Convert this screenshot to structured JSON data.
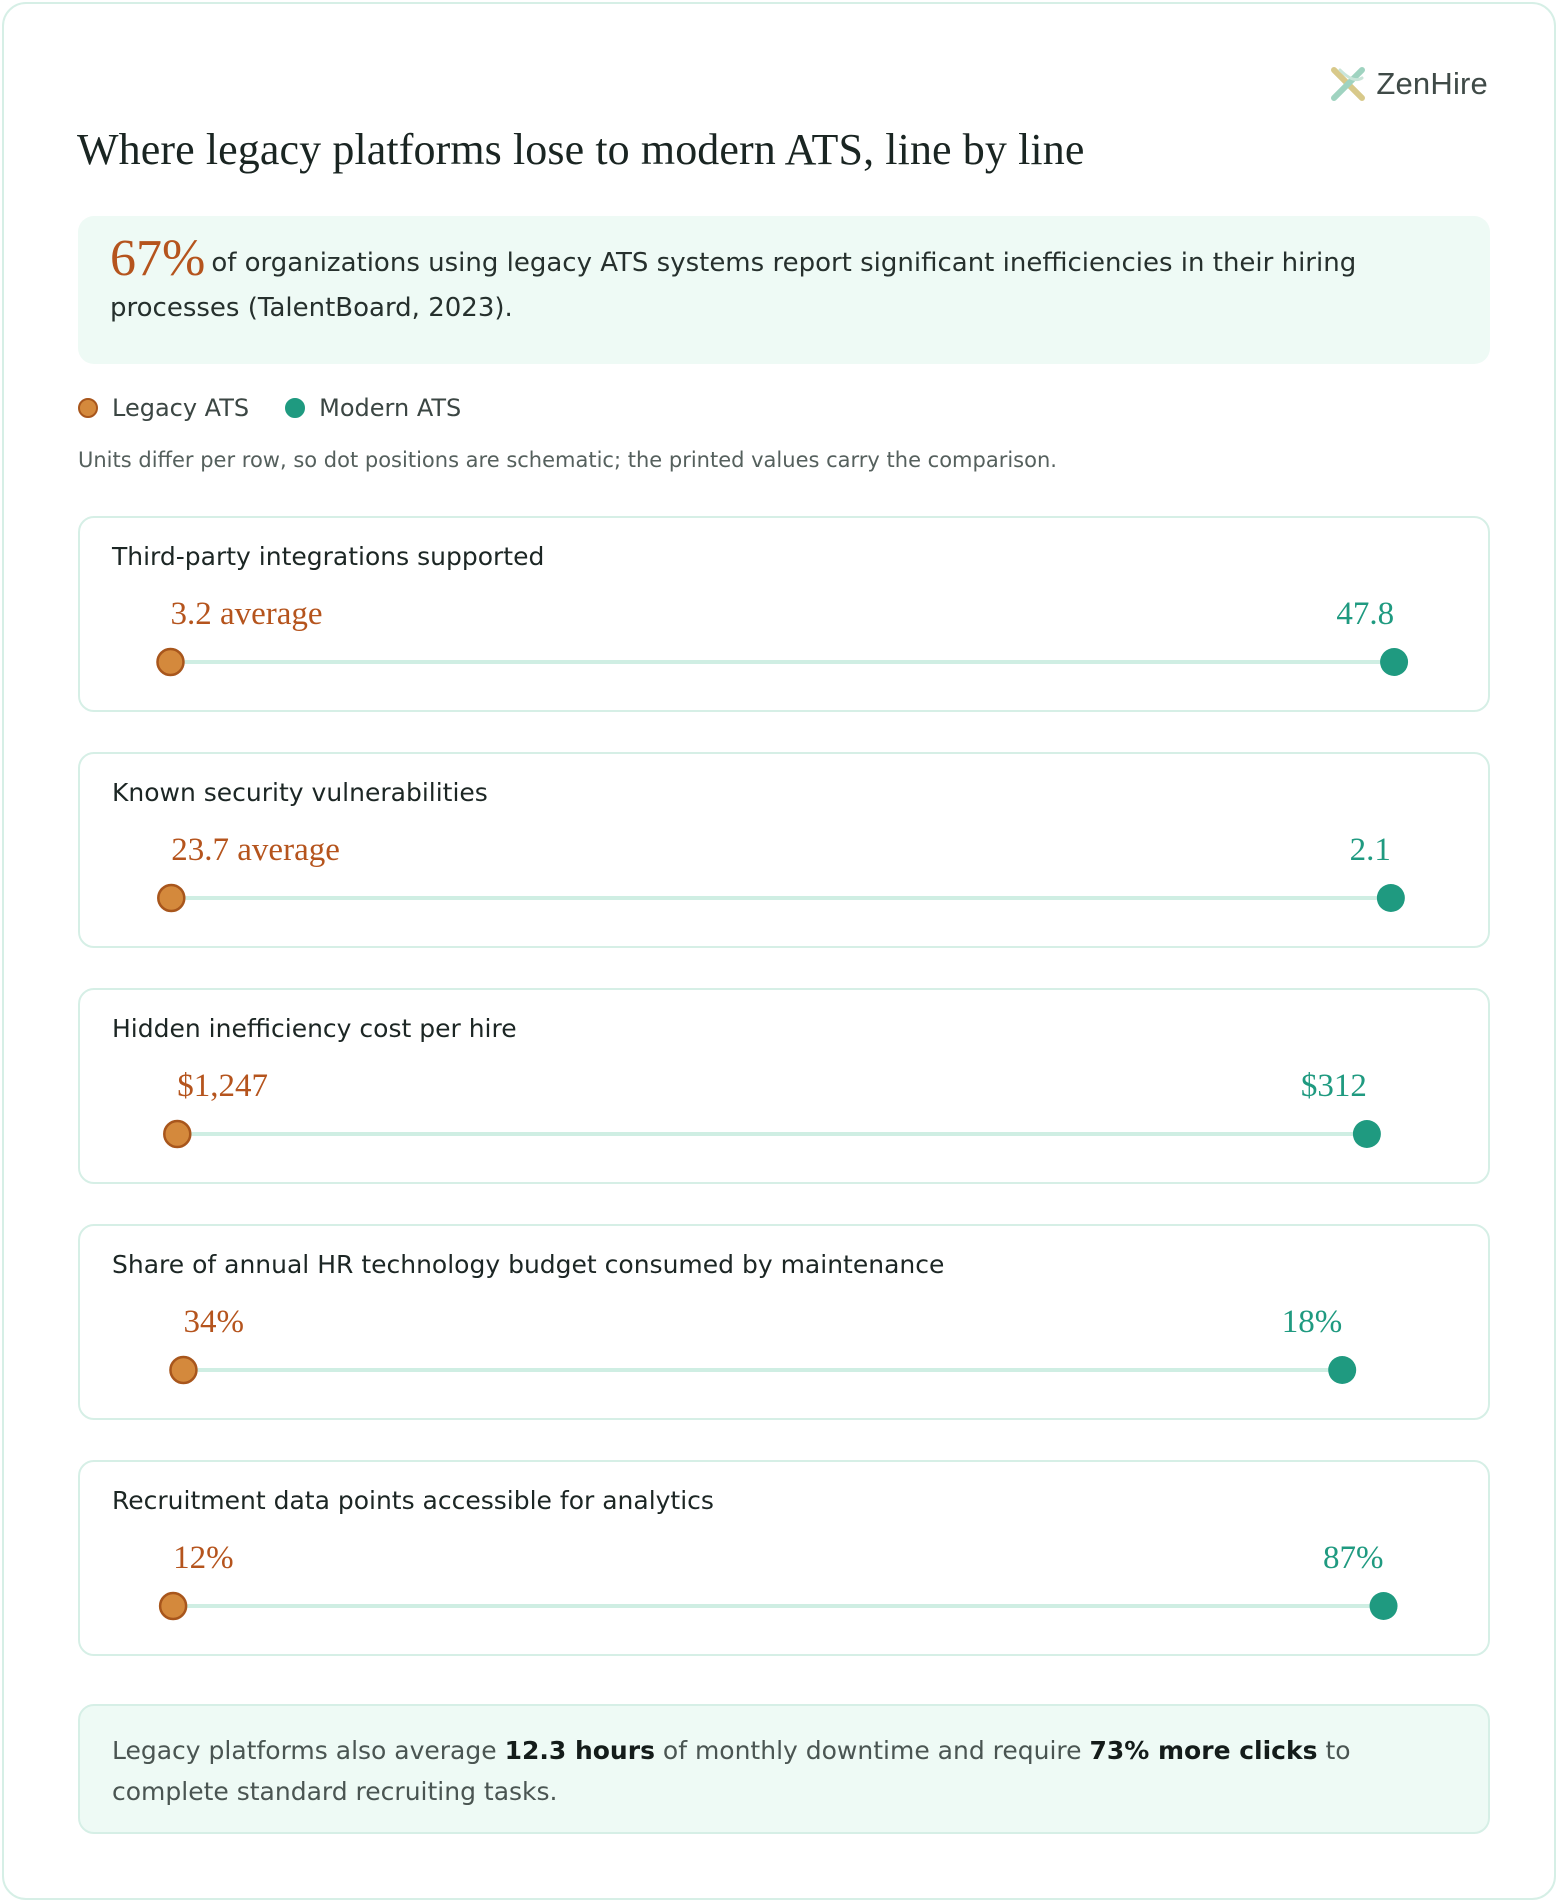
{
  "brand": {
    "name": "ZenHire"
  },
  "title": "Where legacy platforms lose to modern ATS, line by line",
  "highlight": {
    "value": "67%",
    "text": "of organizations using legacy ATS systems report significant inefficiencies in their hiring processes (TalentBoard, 2023)."
  },
  "legend": {
    "legacy": "Legacy ATS",
    "modern": "Modern ATS"
  },
  "note": "Units differ per row, so dot positions are schematic; the printed values carry the comparison.",
  "colors": {
    "legacy": "#d4893c",
    "legacy_text": "#b5541d",
    "modern": "#1f9a80",
    "track": "#cfeee3"
  },
  "chart_data": {
    "type": "dumbbell",
    "series": [
      {
        "name": "Legacy ATS"
      },
      {
        "name": "Modern ATS"
      }
    ],
    "rows": [
      {
        "label": "Third-party integrations supported",
        "legacy": 3.2,
        "modern": 47.8,
        "legacy_label": "3.2 average",
        "modern_label": "47.8"
      },
      {
        "label": "Known security vulnerabilities",
        "legacy": 23.7,
        "modern": 2.1,
        "legacy_label": "23.7 average",
        "modern_label": "2.1"
      },
      {
        "label": "Hidden inefficiency cost per hire",
        "legacy": 1247,
        "modern": 312,
        "legacy_label": "$1,247",
        "modern_label": "$312"
      },
      {
        "label": "Share of annual HR technology budget consumed by maintenance",
        "legacy": 34,
        "modern": 18,
        "legacy_label": "34%",
        "modern_label": "18%"
      },
      {
        "label": "Recruitment data points accessible for analytics",
        "legacy": 12,
        "modern": 87,
        "legacy_label": "12%",
        "modern_label": "87%"
      }
    ]
  },
  "footer": {
    "p1": "Legacy platforms also average ",
    "b1": "12.3 hours",
    "p2": " of monthly downtime and require ",
    "b2": "73% more clicks",
    "p3": " to complete standard recruiting tasks."
  }
}
